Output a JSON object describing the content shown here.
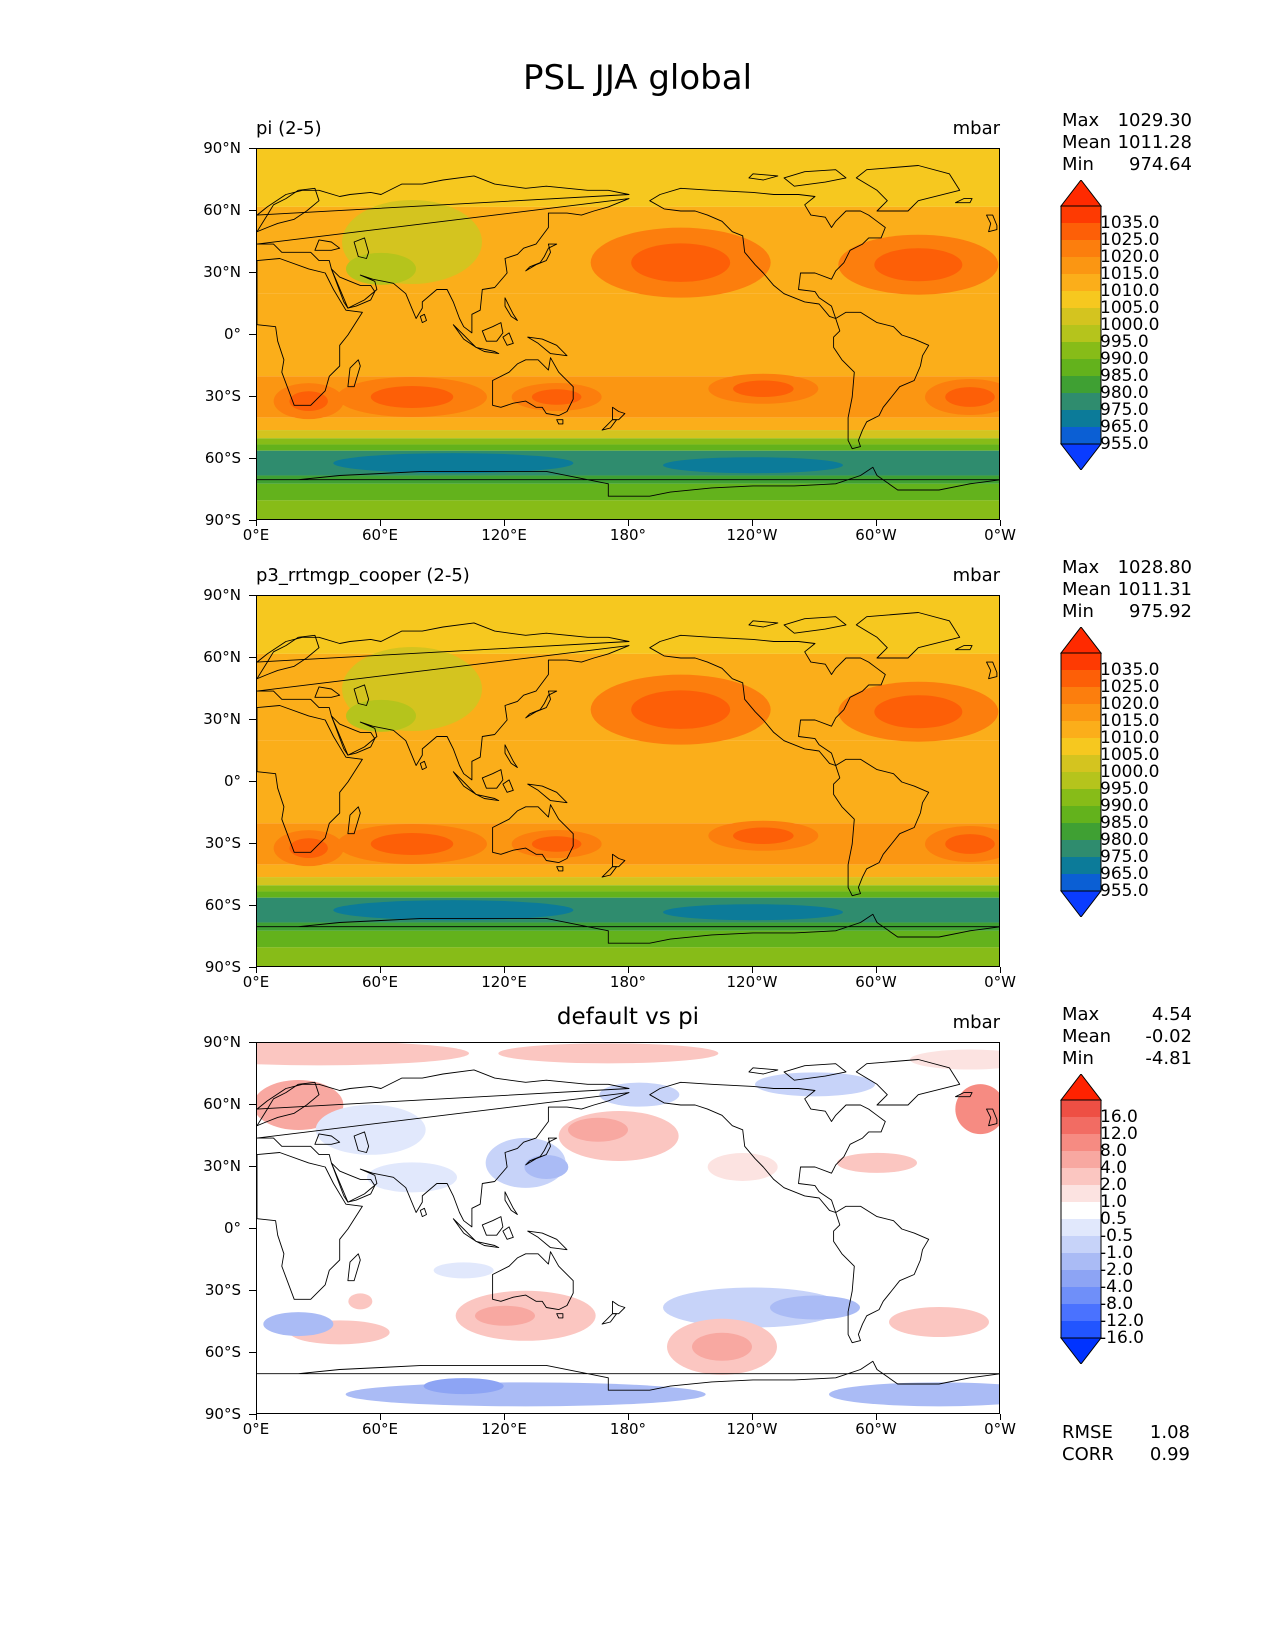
{
  "figure": {
    "title": "PSL JJA global"
  },
  "axes": {
    "lat_ticks": [
      "90°N",
      "60°N",
      "30°N",
      "0°",
      "30°S",
      "60°S",
      "90°S"
    ],
    "lon_ticks": [
      "0°E",
      "60°E",
      "120°E",
      "180°",
      "120°W",
      "60°W",
      "0°W"
    ]
  },
  "colors": {
    "field_levels": [
      "#0a3cff",
      "#0b5fd4",
      "#0c7b99",
      "#2f8c6e",
      "#3fa033",
      "#63b21c",
      "#87bc18",
      "#b5c41c",
      "#d4c41f",
      "#f6c81f",
      "#fbae1a",
      "#fb9612",
      "#fc7e0d",
      "#fd5f07",
      "#fe3a02",
      "#ff2a00"
    ],
    "diff_levels": [
      "#0033ff",
      "#2255ff",
      "#4a72ff",
      "#6f8ff9",
      "#8da4f4",
      "#aabbf5",
      "#c7d3f9",
      "#e1e8fc",
      "#ffffff",
      "#fce3e1",
      "#fbc6c1",
      "#f8a8a1",
      "#f68b82",
      "#f26c63",
      "#ee4f44",
      "#ff2200"
    ]
  },
  "panels": [
    {
      "id": "pi",
      "title_left": "pi (2-5)",
      "title_center": "",
      "units": "mbar",
      "stats": [
        {
          "label": "Max",
          "value": "1029.30"
        },
        {
          "label": "Mean",
          "value": "1011.28"
        },
        {
          "label": "Min",
          "value": "974.64"
        }
      ],
      "colorbar_labels": [
        "1035.0",
        "1025.0",
        "1020.0",
        "1015.0",
        "1010.0",
        "1005.0",
        "1000.0",
        "995.0",
        "990.0",
        "985.0",
        "980.0",
        "975.0",
        "965.0",
        "955.0"
      ],
      "extra_stats": []
    },
    {
      "id": "p3",
      "title_left": "p3_rrtmgp_cooper (2-5)",
      "title_center": "",
      "units": "mbar",
      "stats": [
        {
          "label": "Max",
          "value": "1028.80"
        },
        {
          "label": "Mean",
          "value": "1011.31"
        },
        {
          "label": "Min",
          "value": "975.92"
        }
      ],
      "colorbar_labels": [
        "1035.0",
        "1025.0",
        "1020.0",
        "1015.0",
        "1010.0",
        "1005.0",
        "1000.0",
        "995.0",
        "990.0",
        "985.0",
        "980.0",
        "975.0",
        "965.0",
        "955.0"
      ],
      "extra_stats": []
    },
    {
      "id": "diff",
      "title_left": "",
      "title_center": "default vs pi",
      "units": "mbar",
      "stats": [
        {
          "label": "Max",
          "value": "4.54"
        },
        {
          "label": "Mean",
          "value": "-0.02"
        },
        {
          "label": "Min",
          "value": "-4.81"
        }
      ],
      "colorbar_labels": [
        "16.0",
        "12.0",
        "8.0",
        "4.0",
        "2.0",
        "1.0",
        "0.5",
        "-0.5",
        "-1.0",
        "-2.0",
        "-4.0",
        "-8.0",
        "-12.0",
        "-16.0"
      ],
      "extra_stats": [
        {
          "label": "RMSE",
          "value": "1.08"
        },
        {
          "label": "CORR",
          "value": "0.99"
        }
      ]
    }
  ]
}
